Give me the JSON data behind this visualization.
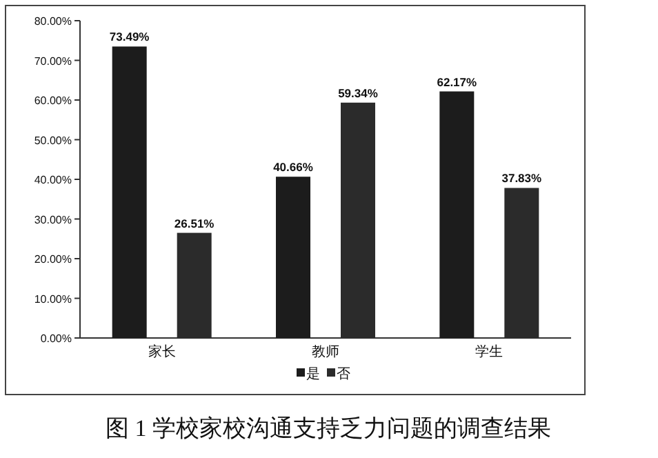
{
  "chart_data": {
    "type": "bar",
    "categories": [
      "家长",
      "教师",
      "学生"
    ],
    "series": [
      {
        "name": "是",
        "color": "#1c1c1c",
        "values": [
          73.49,
          40.66,
          62.17
        ]
      },
      {
        "name": "否",
        "color": "#2b2b2b",
        "values": [
          26.51,
          59.34,
          37.83
        ]
      }
    ],
    "ylim": [
      0,
      80
    ],
    "yticks": [
      {
        "value": 0,
        "label": "0.00%"
      },
      {
        "value": 10,
        "label": "10.00%"
      },
      {
        "value": 20,
        "label": "20.00%"
      },
      {
        "value": 30,
        "label": "30.00%"
      },
      {
        "value": 40,
        "label": "40.00%"
      },
      {
        "value": 50,
        "label": "50.00%"
      },
      {
        "value": 60,
        "label": "60.00%"
      },
      {
        "value": 70,
        "label": "70.00%"
      },
      {
        "value": 80,
        "label": "80.00%"
      }
    ],
    "value_labels": [
      [
        "73.49%",
        "40.66%",
        "62.17%"
      ],
      [
        "26.51%",
        "59.34%",
        "37.83%"
      ]
    ],
    "legend": "bottom",
    "annotations": [
      "图 1 学校家校沟通支持乏力问题的调查结果"
    ]
  }
}
